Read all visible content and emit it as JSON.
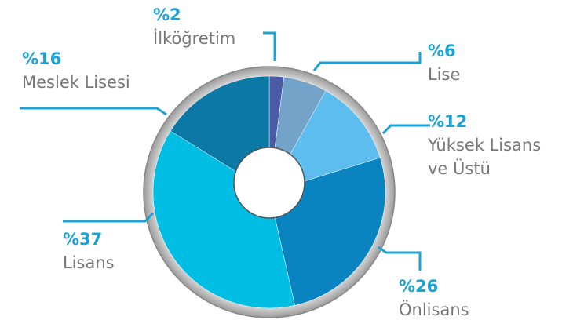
{
  "chart_data": {
    "type": "donut",
    "categories": [
      "İlköğretim",
      "Lise",
      "Yüksek Lisans ve Üstü",
      "Önlisans",
      "Lisans",
      "Meslek Lisesi"
    ],
    "values": [
      2,
      6,
      12,
      26,
      37,
      16
    ],
    "value_labels": [
      "%2",
      "%6",
      "%12",
      "%26",
      "%37",
      "%16"
    ],
    "colors": [
      "#4b5aa6",
      "#74a3c9",
      "#5cbdee",
      "#0a84c0",
      "#00bde3",
      "#0b78a6"
    ]
  }
}
